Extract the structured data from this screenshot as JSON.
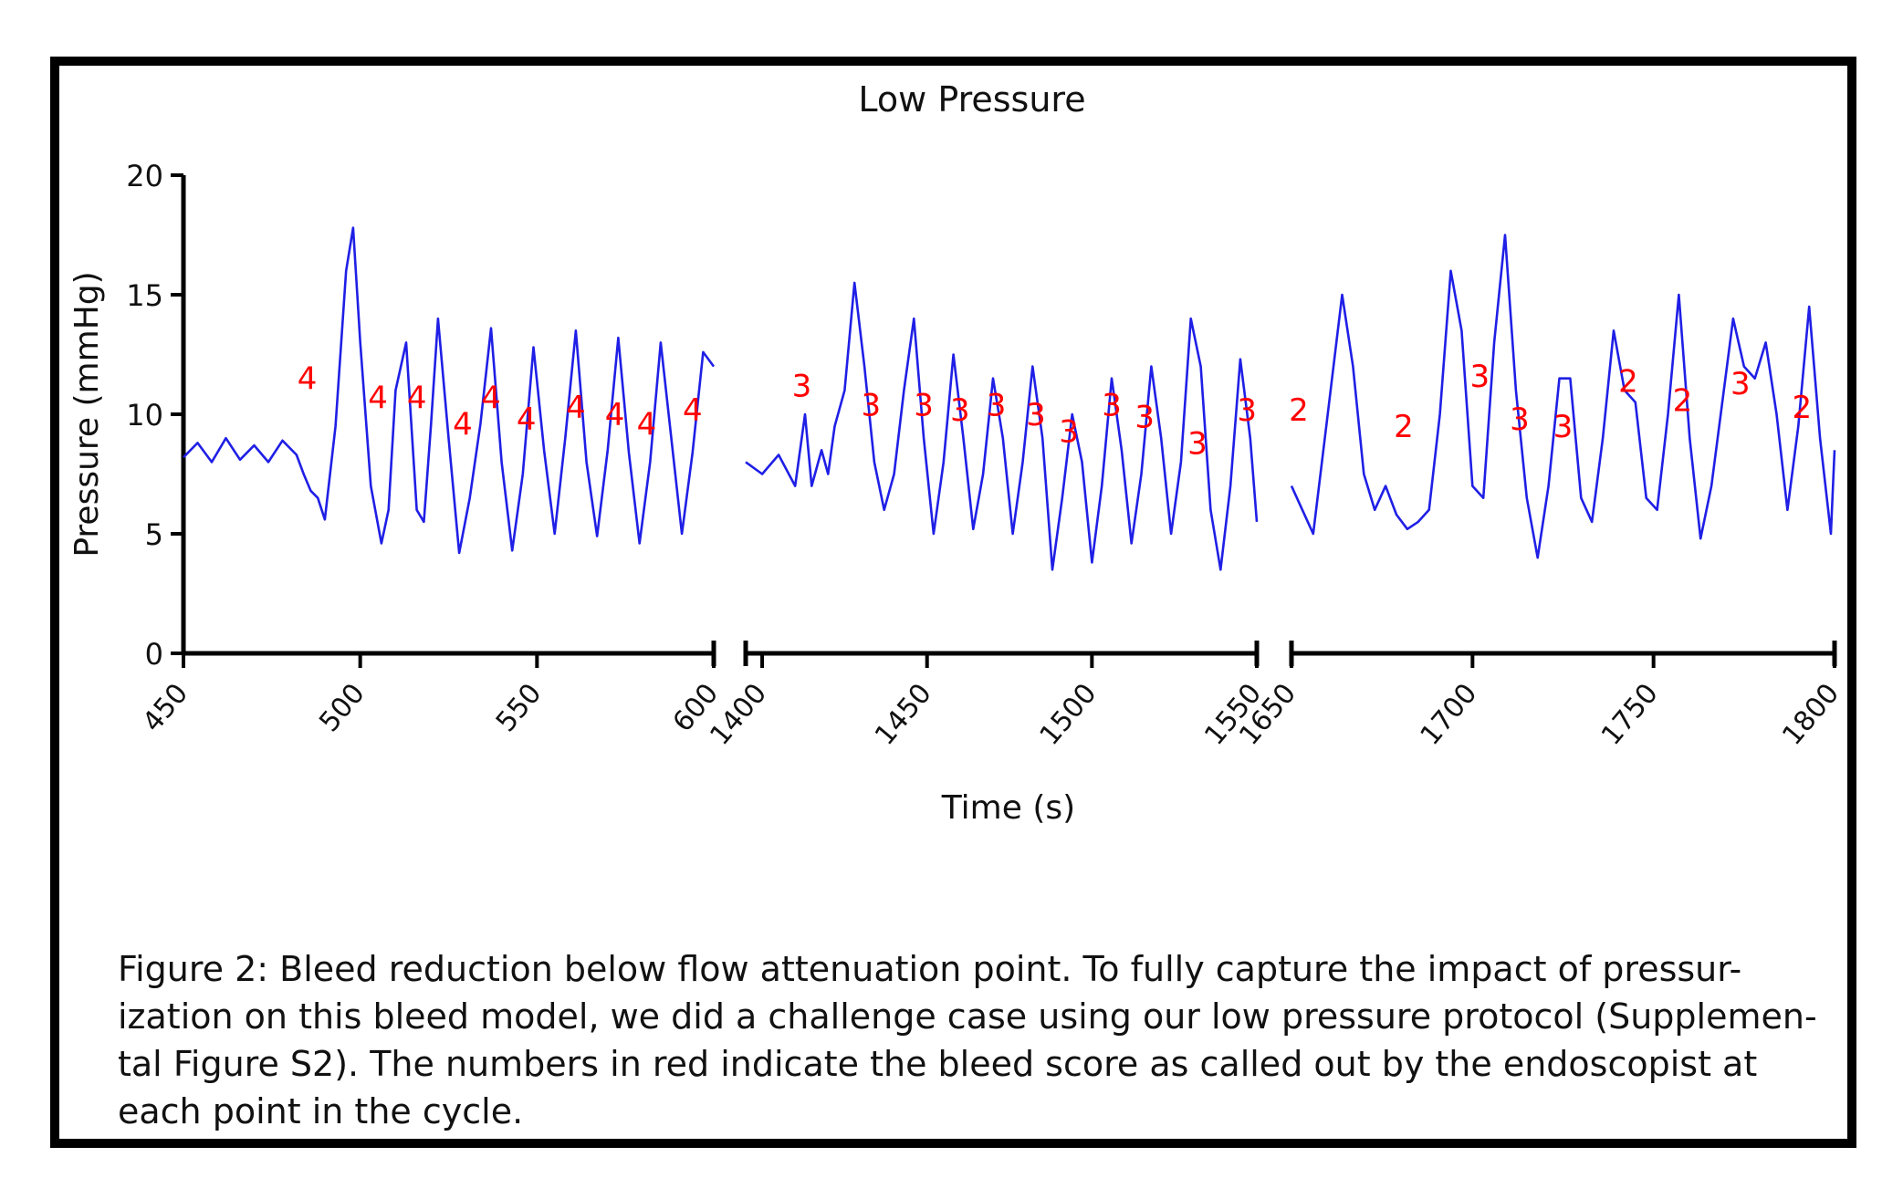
{
  "chart_data": {
    "type": "line",
    "title": "Low Pressure",
    "xlabel": "Time (s)",
    "ylabel": "Pressure (mmHg)",
    "ylim": [
      0,
      20
    ],
    "yticks": [
      0,
      5,
      10,
      15,
      20
    ],
    "line_color": "#1f1fe6",
    "label_color": "#ff0000",
    "panels": [
      {
        "xlim": [
          450,
          600
        ],
        "xticks": [
          450,
          500,
          550,
          600
        ],
        "xtick_labels": [
          "450",
          "500",
          "550",
          "600"
        ],
        "series": [
          {
            "name": "Pressure",
            "x": [
              450,
              454,
              458,
              462,
              466,
              470,
              474,
              478,
              482,
              484,
              486,
              488,
              490,
              493,
              496,
              498,
              500,
              503,
              506,
              508,
              510,
              513,
              516,
              518,
              520,
              522,
              525,
              528,
              531,
              534,
              537,
              540,
              543,
              546,
              549,
              552,
              555,
              558,
              561,
              564,
              567,
              570,
              573,
              576,
              579,
              582,
              585,
              588,
              591,
              594,
              597,
              600
            ],
            "y": [
              8.2,
              8.8,
              8.0,
              9.0,
              8.1,
              8.7,
              8.0,
              8.9,
              8.3,
              7.5,
              6.8,
              6.5,
              5.6,
              9.5,
              16.0,
              17.8,
              13.0,
              7.0,
              4.6,
              6.0,
              11.0,
              13.0,
              6.0,
              5.5,
              9.5,
              14.0,
              9.0,
              4.2,
              6.5,
              9.6,
              13.6,
              8.0,
              4.3,
              7.5,
              12.8,
              8.5,
              5.0,
              9.0,
              13.5,
              8.0,
              4.9,
              8.5,
              13.2,
              8.4,
              4.6,
              8.0,
              13.0,
              9.0,
              5.0,
              8.4,
              12.6,
              12.0
            ]
          }
        ],
        "annotations": [
          {
            "x": 485,
            "y": 11.5,
            "text": "4"
          },
          {
            "x": 505,
            "y": 10.7,
            "text": "4"
          },
          {
            "x": 516,
            "y": 10.7,
            "text": "4"
          },
          {
            "x": 529,
            "y": 9.6,
            "text": "4"
          },
          {
            "x": 537,
            "y": 10.7,
            "text": "4"
          },
          {
            "x": 547,
            "y": 9.8,
            "text": "4"
          },
          {
            "x": 561,
            "y": 10.3,
            "text": "4"
          },
          {
            "x": 572,
            "y": 10.0,
            "text": "4"
          },
          {
            "x": 581,
            "y": 9.6,
            "text": "4"
          },
          {
            "x": 594,
            "y": 10.2,
            "text": "4"
          }
        ]
      },
      {
        "xlim": [
          1395,
          1550
        ],
        "xticks": [
          1400,
          1450,
          1500,
          1550
        ],
        "xtick_labels": [
          "1400",
          "1450",
          "1500",
          "1550"
        ],
        "series": [
          {
            "name": "Pressure",
            "x": [
              1395,
              1400,
              1405,
              1410,
              1413,
              1415,
              1418,
              1420,
              1422,
              1425,
              1428,
              1431,
              1434,
              1437,
              1440,
              1443,
              1446,
              1449,
              1452,
              1455,
              1458,
              1461,
              1464,
              1467,
              1470,
              1473,
              1476,
              1479,
              1482,
              1485,
              1488,
              1491,
              1494,
              1497,
              1500,
              1503,
              1506,
              1509,
              1512,
              1515,
              1518,
              1521,
              1524,
              1527,
              1530,
              1533,
              1536,
              1539,
              1542,
              1545,
              1548,
              1550
            ],
            "y": [
              8.0,
              7.5,
              8.3,
              7.0,
              10.0,
              7.0,
              8.5,
              7.5,
              9.5,
              11.0,
              15.5,
              12.0,
              8.0,
              6.0,
              7.5,
              11.0,
              14.0,
              9.0,
              5.0,
              8.0,
              12.5,
              9.0,
              5.2,
              7.5,
              11.5,
              9.0,
              5.0,
              8.0,
              12.0,
              9.0,
              3.5,
              6.5,
              10.0,
              8.0,
              3.8,
              7.0,
              11.5,
              8.5,
              4.6,
              7.5,
              12.0,
              9.0,
              5.0,
              8.0,
              14.0,
              12.0,
              6.0,
              3.5,
              7.0,
              12.3,
              9.0,
              5.5
            ]
          }
        ],
        "annotations": [
          {
            "x": 1412,
            "y": 11.2,
            "text": "3"
          },
          {
            "x": 1433,
            "y": 10.4,
            "text": "3"
          },
          {
            "x": 1449,
            "y": 10.4,
            "text": "3"
          },
          {
            "x": 1460,
            "y": 10.2,
            "text": "3"
          },
          {
            "x": 1471,
            "y": 10.4,
            "text": "3"
          },
          {
            "x": 1483,
            "y": 10.0,
            "text": "3"
          },
          {
            "x": 1493,
            "y": 9.3,
            "text": "3"
          },
          {
            "x": 1506,
            "y": 10.4,
            "text": "3"
          },
          {
            "x": 1516,
            "y": 9.9,
            "text": "3"
          },
          {
            "x": 1532,
            "y": 8.8,
            "text": "3"
          },
          {
            "x": 1547,
            "y": 10.2,
            "text": "3"
          }
        ]
      },
      {
        "xlim": [
          1650,
          1800
        ],
        "xticks": [
          1650,
          1700,
          1750,
          1800
        ],
        "xtick_labels": [
          "1650",
          "1700",
          "1750",
          "1800"
        ],
        "series": [
          {
            "name": "Pressure",
            "x": [
              1650,
              1653,
              1656,
              1660,
              1664,
              1667,
              1670,
              1673,
              1676,
              1679,
              1682,
              1685,
              1688,
              1691,
              1694,
              1697,
              1700,
              1703,
              1706,
              1709,
              1712,
              1715,
              1718,
              1721,
              1724,
              1727,
              1730,
              1733,
              1736,
              1739,
              1742,
              1745,
              1748,
              1751,
              1754,
              1757,
              1760,
              1763,
              1766,
              1769,
              1772,
              1775,
              1778,
              1781,
              1784,
              1787,
              1790,
              1793,
              1796,
              1799,
              1800
            ],
            "y": [
              7.0,
              6.0,
              5.0,
              10.0,
              15.0,
              12.0,
              7.5,
              6.0,
              7.0,
              5.8,
              5.2,
              5.5,
              6.0,
              10.0,
              16.0,
              13.5,
              7.0,
              6.5,
              13.0,
              17.5,
              11.0,
              6.5,
              4.0,
              7.0,
              11.5,
              11.5,
              6.5,
              5.5,
              9.0,
              13.5,
              11.0,
              10.5,
              6.5,
              6.0,
              10.0,
              15.0,
              9.0,
              4.8,
              7.0,
              10.5,
              14.0,
              12.0,
              11.5,
              13.0,
              10.0,
              6.0,
              9.5,
              14.5,
              9.0,
              5.0,
              8.5
            ]
          }
        ],
        "annotations": [
          {
            "x": 1652,
            "y": 10.2,
            "text": "2"
          },
          {
            "x": 1681,
            "y": 9.5,
            "text": "2"
          },
          {
            "x": 1702,
            "y": 11.6,
            "text": "3"
          },
          {
            "x": 1713,
            "y": 9.8,
            "text": "3"
          },
          {
            "x": 1725,
            "y": 9.5,
            "text": "3"
          },
          {
            "x": 1743,
            "y": 11.4,
            "text": "2"
          },
          {
            "x": 1758,
            "y": 10.6,
            "text": "2"
          },
          {
            "x": 1774,
            "y": 11.3,
            "text": "3"
          },
          {
            "x": 1791,
            "y": 10.3,
            "text": "2"
          }
        ]
      }
    ]
  },
  "caption": {
    "text": "Figure 2: Bleed reduction below flow attenuation point. To fully capture the impact of pressur-\nization on this bleed model, we did a challenge case using our low pressure protocol (Supplemen-\ntal Figure S2). The numbers in red indicate the bleed score as called out by the endoscopist at\neach point in the cycle."
  }
}
